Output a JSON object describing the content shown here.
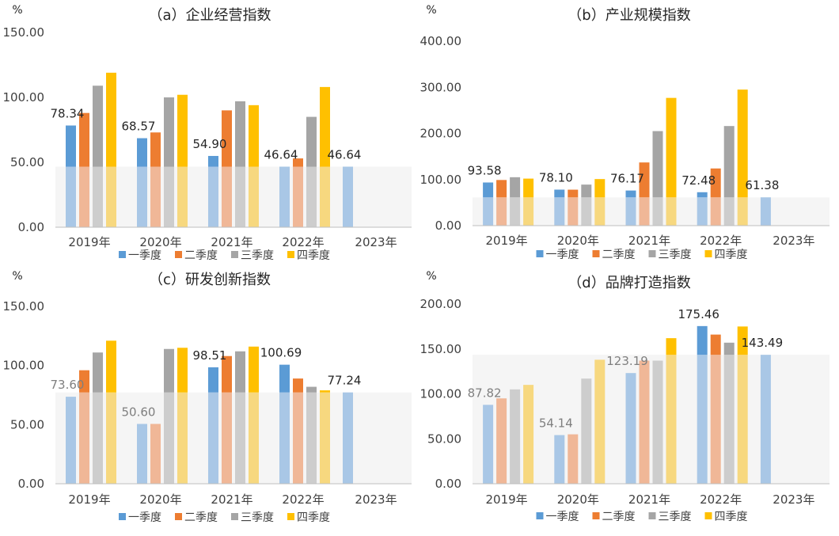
{
  "colors": {
    "q1": "#5B9BD5",
    "q2": "#ED7D31",
    "q3": "#A5A5A5",
    "q4": "#FFC000",
    "q1_light": "#A9C7E6",
    "q2_light": "#F0B797",
    "q3_light": "#CDCDCD",
    "q4_light": "#F7D87F",
    "band": "#F5F5F5",
    "axis": "#BFBFBF"
  },
  "chart_data": [
    {
      "type": "bar",
      "title": "（a）企业经营指数",
      "unit": "%",
      "categories": [
        "2019年",
        "2020年",
        "2021年",
        "2022年",
        "2023年"
      ],
      "ylim": [
        0,
        150
      ],
      "yticks": [
        "0.00",
        "50.00",
        "100.00",
        "150.00"
      ],
      "band": 46.64,
      "series": [
        {
          "name": "一季度",
          "values": [
            78.34,
            68.57,
            54.9,
            46.64,
            46.64
          ]
        },
        {
          "name": "二季度",
          "values": [
            88,
            73,
            90,
            53,
            null
          ]
        },
        {
          "name": "三季度",
          "values": [
            109,
            100,
            97,
            85,
            null
          ]
        },
        {
          "name": "四季度",
          "values": [
            119,
            102,
            94,
            108,
            null
          ]
        }
      ],
      "labels": [
        "78.34",
        "68.57",
        "54.90",
        "46.64",
        "46.64"
      ]
    },
    {
      "type": "bar",
      "title": "（b）产业规模指数",
      "unit": "%",
      "categories": [
        "2019年",
        "2020年",
        "2021年",
        "2022年",
        "2023年"
      ],
      "ylim": [
        0,
        400
      ],
      "yticks": [
        "0.00",
        "100.00",
        "200.00",
        "300.00",
        "400.00"
      ],
      "band": 61.38,
      "series": [
        {
          "name": "一季度",
          "values": [
            93.58,
            78.1,
            76.17,
            72.48,
            61.38
          ]
        },
        {
          "name": "二季度",
          "values": [
            99,
            78,
            137,
            124,
            null
          ]
        },
        {
          "name": "三季度",
          "values": [
            105,
            89,
            205,
            216,
            null
          ]
        },
        {
          "name": "四季度",
          "values": [
            102,
            101,
            277,
            295,
            null
          ]
        }
      ],
      "labels": [
        "93.58",
        "78.10",
        "76.17",
        "72.48",
        "61.38"
      ]
    },
    {
      "type": "bar",
      "title": "（c）研发创新指数",
      "unit": "%",
      "categories": [
        "2019年",
        "2020年",
        "2021年",
        "2022年",
        "2023年"
      ],
      "ylim": [
        0,
        150
      ],
      "yticks": [
        "0.00",
        "50.00",
        "100.00",
        "150.00"
      ],
      "band": 77.24,
      "series": [
        {
          "name": "一季度",
          "values": [
            73.6,
            50.6,
            98.51,
            100.69,
            77.24
          ]
        },
        {
          "name": "二季度",
          "values": [
            96,
            50.6,
            108,
            89,
            null
          ]
        },
        {
          "name": "三季度",
          "values": [
            111,
            114,
            112,
            82,
            null
          ]
        },
        {
          "name": "四季度",
          "values": [
            121,
            115,
            116,
            79,
            null
          ]
        }
      ],
      "labels": [
        "73.60",
        "50.60",
        "98.51",
        "100.69",
        "77.24"
      ]
    },
    {
      "type": "bar",
      "title": "（d）品牌打造指数",
      "unit": "%",
      "categories": [
        "2019年",
        "2020年",
        "2021年",
        "2022年",
        "2023年"
      ],
      "ylim": [
        0,
        200
      ],
      "yticks": [
        "0.00",
        "50.00",
        "100.00",
        "150.00",
        "200.00"
      ],
      "band": 143.49,
      "series": [
        {
          "name": "一季度",
          "values": [
            87.82,
            54.14,
            123.19,
            175.46,
            143.49
          ]
        },
        {
          "name": "二季度",
          "values": [
            95,
            55,
            137,
            166,
            null
          ]
        },
        {
          "name": "三季度",
          "values": [
            105,
            117,
            137,
            157,
            null
          ]
        },
        {
          "name": "四季度",
          "values": [
            110,
            138,
            162,
            175,
            null
          ]
        }
      ],
      "labels": [
        "87.82",
        "54.14",
        "123.19",
        "175.46",
        "143.49"
      ]
    }
  ]
}
